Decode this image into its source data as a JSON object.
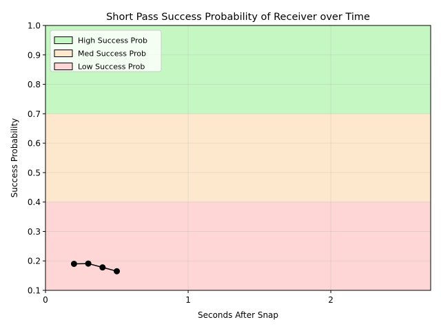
{
  "chart_data": {
    "type": "line",
    "title": "Short Pass Success Probability of Receiver over Time",
    "xlabel": "Seconds After Snap",
    "ylabel": "Success Probability",
    "xlim": [
      0,
      2.7
    ],
    "ylim": [
      0.1,
      1.0
    ],
    "x_ticks": [
      0,
      1,
      2
    ],
    "x_tick_labels": [
      "0",
      "1",
      "2"
    ],
    "y_ticks": [
      0.1,
      0.2,
      0.3,
      0.4,
      0.5,
      0.6,
      0.7,
      0.8,
      0.9,
      1.0
    ],
    "y_tick_labels": [
      "0.1",
      "0.2",
      "0.3",
      "0.4",
      "0.5",
      "0.6",
      "0.7",
      "0.8",
      "0.9",
      "1.0"
    ],
    "grid": true,
    "legend_position": "top-left",
    "bands": [
      {
        "name": "High Success Prob",
        "from": 0.7,
        "to": 1.0,
        "color": "#c5f7c3"
      },
      {
        "name": "Med Success Prob",
        "from": 0.4,
        "to": 0.7,
        "color": "#fde8cd"
      },
      {
        "name": "Low Success Prob",
        "from": 0.1,
        "to": 0.4,
        "color": "#fed6d6"
      }
    ],
    "series": [
      {
        "x": [
          0.2,
          0.3,
          0.4,
          0.5
        ],
        "y": [
          0.19,
          0.191,
          0.178,
          0.165
        ],
        "color": "#000000",
        "marker": "circle"
      }
    ]
  }
}
